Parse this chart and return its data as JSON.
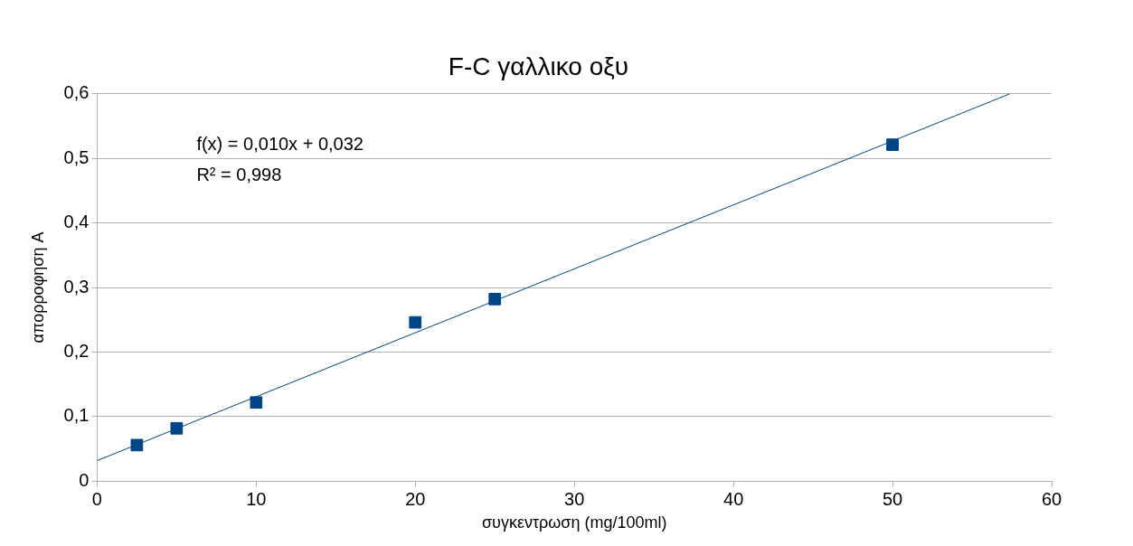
{
  "chart_data": {
    "type": "scatter",
    "title": "F-C γαλλικο οξυ",
    "xlabel": "συγκεντρωση (mg/100ml)",
    "ylabel": "απορροφηση A",
    "series": [
      {
        "type": "scatter",
        "color": "#004586",
        "marker": "square",
        "x": [
          2.5,
          5,
          10,
          20,
          25,
          50
        ],
        "values": [
          0.056,
          0.082,
          0.122,
          0.246,
          0.282,
          0.521
        ]
      },
      {
        "type": "line",
        "color": "#004586",
        "marker": "none",
        "x": [
          0,
          57.4
        ],
        "values": [
          0.032,
          0.6
        ]
      }
    ],
    "xlim": [
      0,
      60
    ],
    "xticks": [
      0,
      10,
      20,
      30,
      40,
      50,
      60
    ],
    "ylim": [
      0,
      0.6
    ],
    "yticks": [
      0,
      {
        "value": 0.1,
        "label": "0,1"
      },
      {
        "value": 0.2,
        "label": "0,2"
      },
      {
        "value": 0.3,
        "label": "0,3"
      },
      {
        "value": 0.4,
        "label": "0,4"
      },
      {
        "value": 0.5,
        "label": "0,5"
      },
      {
        "value": 0.6,
        "label": "0,6"
      }
    ],
    "annotations": [
      "f(x) = 0,010x + 0,032",
      "R² = 0,998"
    ],
    "grid": "y",
    "legend": false
  }
}
